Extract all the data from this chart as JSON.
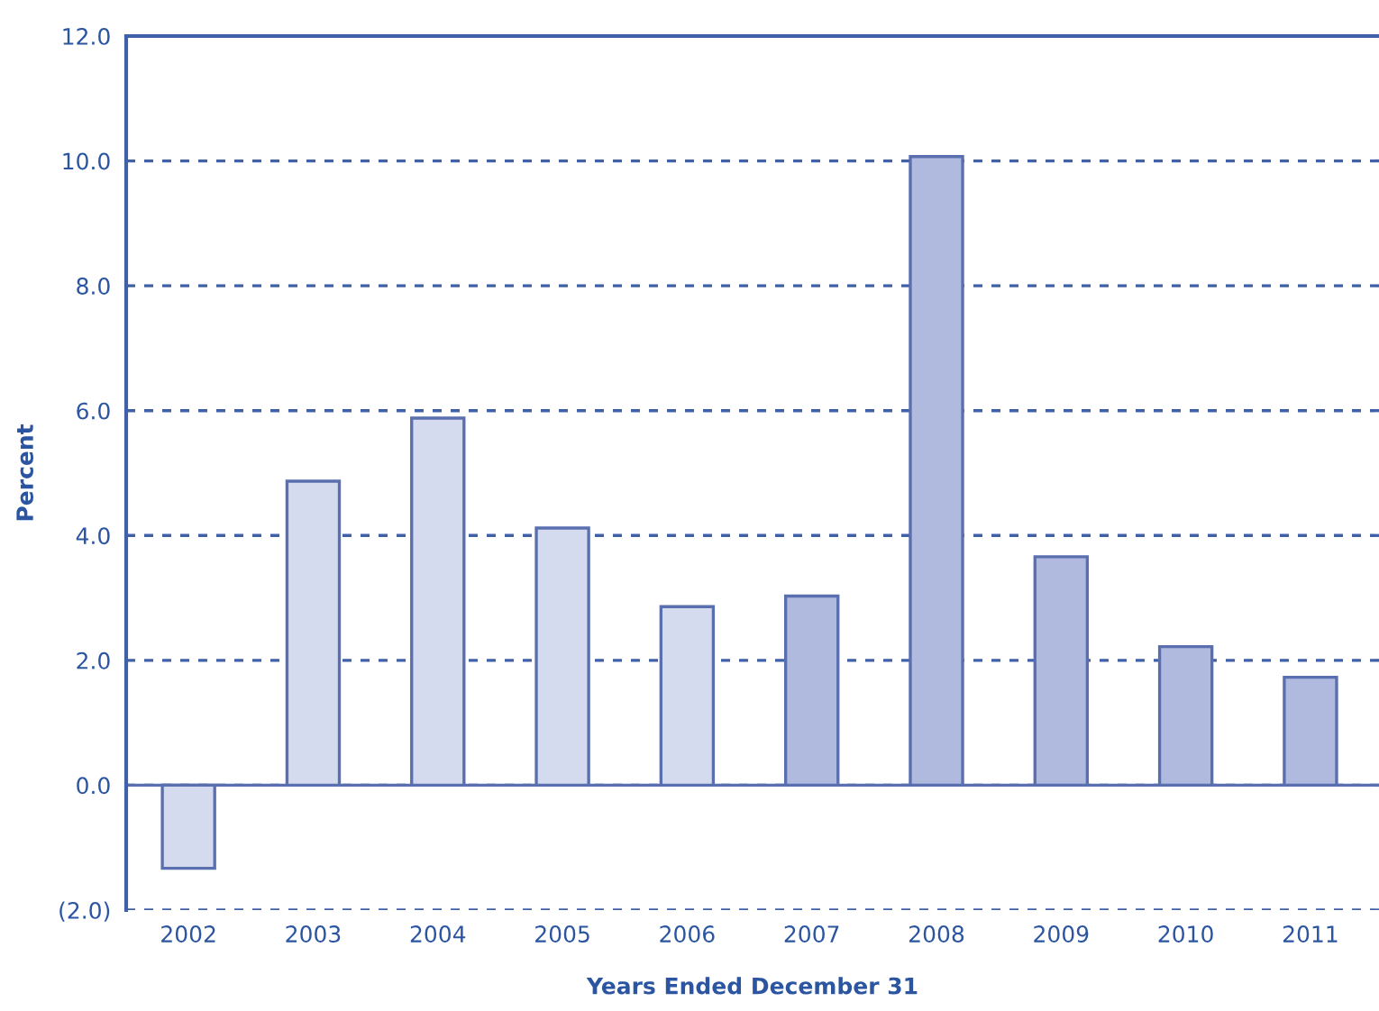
{
  "chart_data": {
    "type": "bar",
    "xlabel": "Years Ended December 31",
    "ylabel": "Percent",
    "categories": [
      "2002",
      "2003",
      "2004",
      "2005",
      "2006",
      "2007",
      "2008",
      "2009",
      "2010",
      "2011"
    ],
    "values": [
      -1.33,
      4.87,
      5.88,
      4.12,
      2.86,
      3.03,
      10.07,
      3.66,
      2.22,
      1.73
    ],
    "colors": [
      "#d5dbee",
      "#d5dbee",
      "#d5dbee",
      "#d5dbee",
      "#d5dbee",
      "#b0b9de",
      "#b0b9de",
      "#b0b9de",
      "#b0b9de",
      "#b0b9de"
    ],
    "ylim": [
      -2,
      12
    ],
    "yticks": [
      {
        "value": -2,
        "label": "(2.0)"
      },
      {
        "value": 0,
        "label": "0.0"
      },
      {
        "value": 2,
        "label": "2.0"
      },
      {
        "value": 4,
        "label": "4.0"
      },
      {
        "value": 6,
        "label": "6.0"
      },
      {
        "value": 8,
        "label": "8.0"
      },
      {
        "value": 10,
        "label": "10.0"
      },
      {
        "value": 12,
        "label": "12.0"
      }
    ],
    "grid": "y",
    "ref_lines": [
      {
        "axis": "y",
        "value": 0,
        "color": "#5a6fb0"
      }
    ]
  }
}
